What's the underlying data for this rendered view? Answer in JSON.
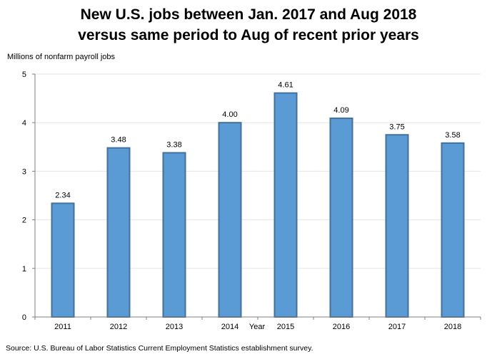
{
  "chart_data": {
    "type": "bar",
    "title_line1": "New U.S. jobs between Jan. 2017 and Aug 2018",
    "title_line2": "versus same period to Aug of recent prior years",
    "ylabel": "Millions of nonfarm payroll jobs",
    "xlabel": "Year",
    "categories": [
      "2011",
      "2012",
      "2013",
      "2014",
      "2015",
      "2016",
      "2017",
      "2018"
    ],
    "values": [
      2.34,
      3.48,
      3.38,
      4.0,
      4.61,
      4.09,
      3.75,
      3.58
    ],
    "data_labels": [
      "2.34",
      "3.48",
      "3.38",
      "4.00",
      "4.61",
      "4.09",
      "3.75",
      "3.58"
    ],
    "ylim": [
      0,
      5
    ],
    "yticks": [
      0,
      1,
      2,
      3,
      4,
      5
    ],
    "grid": true,
    "bar_color": "#5b9bd5",
    "bar_edge_color": "#41719c",
    "source": "Source: U.S. Bureau of Labor Statistics Current Employment Statistics establishment survey."
  }
}
